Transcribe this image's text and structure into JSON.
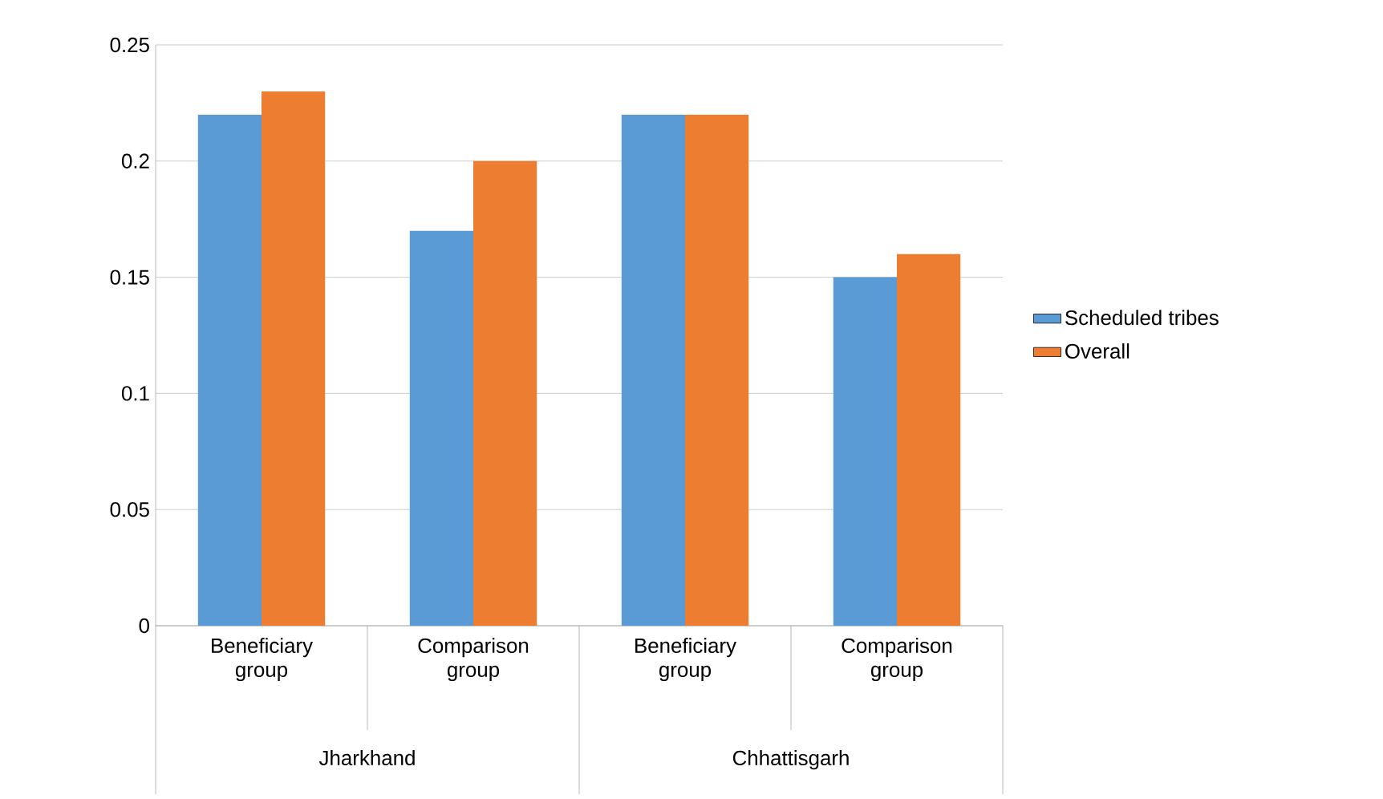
{
  "chart_data": {
    "type": "bar",
    "categories": [
      "Beneficiary group",
      "Comparison group",
      "Beneficiary group",
      "Comparison group"
    ],
    "series": [
      {
        "name": "Scheduled tribes",
        "color": "#5b9bd5",
        "values": [
          0.22,
          0.17,
          0.22,
          0.15
        ]
      },
      {
        "name": "Overall",
        "color": "#ed7d31",
        "values": [
          0.23,
          0.2,
          0.22,
          0.16
        ]
      }
    ],
    "ylim": [
      0,
      0.25
    ],
    "yticks": [
      0,
      0.05,
      0.1,
      0.15,
      0.2,
      0.25
    ],
    "grid": "y",
    "legend": "right",
    "annotations": [
      "Jharkhand",
      "Chhattisgarh"
    ]
  }
}
